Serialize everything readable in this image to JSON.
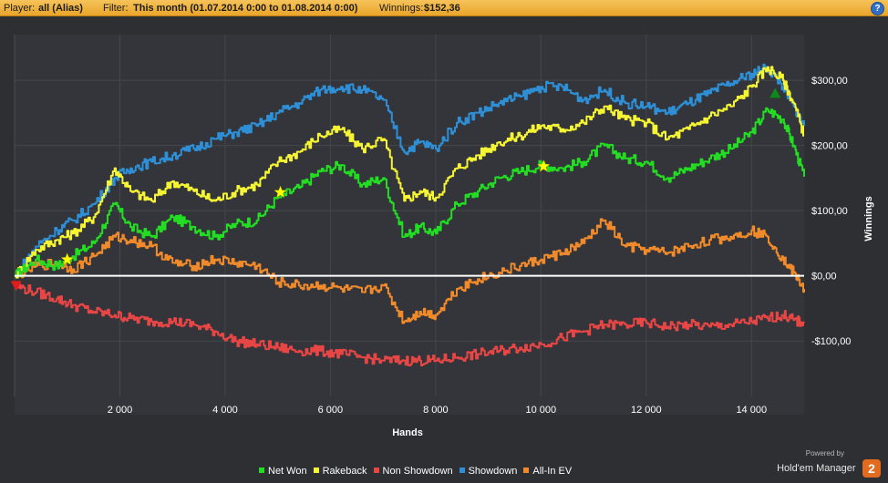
{
  "header": {
    "player_label": "Player:",
    "player_value": "all (Alias)",
    "filter_label": "Filter:",
    "filter_value": "This month (01.07.2014 0:00 to 01.08.2014 0:00)",
    "winnings_label": "Winnings:",
    "winnings_value": "$152,36",
    "help_glyph": "?"
  },
  "chart_data": {
    "type": "line",
    "xlabel": "Hands",
    "ylabel": "Winnings",
    "xlim": [
      0,
      15000
    ],
    "ylim": [
      -185,
      370
    ],
    "x_ticks": [
      2000,
      4000,
      6000,
      8000,
      10000,
      12000,
      14000
    ],
    "x_tick_labels": [
      "2 000",
      "4 000",
      "6 000",
      "8 000",
      "10 000",
      "12 000",
      "14 000"
    ],
    "y_ticks": [
      300,
      200,
      100,
      0,
      -100
    ],
    "y_tick_labels": [
      "$300,00",
      "$200,00",
      "$100,00",
      "$0,00",
      "-$100,00"
    ],
    "grid": true,
    "legend_position": "bottom",
    "x": [
      0,
      400,
      800,
      1100,
      1500,
      1900,
      2200,
      2600,
      3000,
      3400,
      3800,
      4200,
      4600,
      5000,
      5400,
      5800,
      6200,
      6600,
      7000,
      7400,
      7700,
      8000,
      8400,
      8800,
      9200,
      9600,
      10000,
      10400,
      10800,
      11200,
      11600,
      12000,
      12400,
      12800,
      13200,
      13600,
      14000,
      14300,
      14600,
      14800,
      15000
    ],
    "series": [
      {
        "name": "Net Won",
        "color": "#22dd22",
        "values": [
          0,
          25,
          15,
          30,
          50,
          110,
          75,
          60,
          90,
          75,
          60,
          80,
          85,
          120,
          135,
          160,
          170,
          140,
          150,
          60,
          75,
          65,
          110,
          130,
          150,
          160,
          170,
          165,
          175,
          200,
          180,
          175,
          150,
          165,
          180,
          195,
          220,
          255,
          240,
          200,
          152
        ]
      },
      {
        "name": "Rakeback",
        "color": "#f5f533",
        "values": [
          0,
          40,
          55,
          65,
          90,
          165,
          130,
          115,
          145,
          130,
          115,
          130,
          140,
          175,
          190,
          215,
          225,
          195,
          210,
          115,
          130,
          120,
          165,
          185,
          205,
          215,
          230,
          225,
          235,
          260,
          240,
          235,
          210,
          225,
          245,
          260,
          290,
          320,
          300,
          265,
          215
        ]
      },
      {
        "name": "Non Showdown",
        "color": "#e84545",
        "values": [
          -15,
          -25,
          -35,
          -45,
          -55,
          -60,
          -65,
          -70,
          -70,
          -75,
          -85,
          -100,
          -105,
          -110,
          -115,
          -115,
          -120,
          -125,
          -130,
          -130,
          -130,
          -130,
          -125,
          -120,
          -115,
          -110,
          -105,
          -95,
          -85,
          -75,
          -75,
          -72,
          -78,
          -75,
          -78,
          -75,
          -70,
          -65,
          -60,
          -68,
          -72
        ]
      },
      {
        "name": "Showdown",
        "color": "#2e8fd6",
        "values": [
          0,
          45,
          70,
          85,
          110,
          150,
          165,
          175,
          185,
          195,
          210,
          220,
          230,
          250,
          265,
          285,
          290,
          285,
          270,
          190,
          205,
          195,
          235,
          250,
          265,
          275,
          290,
          290,
          270,
          285,
          265,
          260,
          250,
          265,
          280,
          295,
          310,
          320,
          290,
          260,
          230
        ]
      },
      {
        "name": "All-In EV",
        "color": "#f08a2a",
        "values": [
          0,
          15,
          20,
          10,
          30,
          60,
          55,
          45,
          20,
          15,
          25,
          20,
          15,
          -10,
          -15,
          -15,
          -20,
          -25,
          -15,
          -70,
          -55,
          -60,
          -20,
          -5,
          5,
          15,
          25,
          35,
          50,
          85,
          45,
          40,
          35,
          45,
          55,
          60,
          70,
          60,
          25,
          5,
          -20
        ]
      }
    ],
    "markers": [
      {
        "type": "star",
        "x": 1000,
        "y": 25,
        "color": "#ffff00"
      },
      {
        "type": "star",
        "x": 5050,
        "y": 128,
        "color": "#ffff00"
      },
      {
        "type": "star",
        "x": 10050,
        "y": 168,
        "color": "#ffff00"
      },
      {
        "type": "triangle-up",
        "x": 14450,
        "y": 280,
        "color": "#0d8a1a"
      },
      {
        "type": "triangle-down",
        "x": 30,
        "y": -15,
        "color": "#e11c1c"
      }
    ]
  },
  "legend": [
    {
      "label": "Net Won",
      "color": "#22dd22"
    },
    {
      "label": "Rakeback",
      "color": "#f5f533"
    },
    {
      "label": "Non Showdown",
      "color": "#e84545"
    },
    {
      "label": "Showdown",
      "color": "#2e8fd6"
    },
    {
      "label": "All-In EV",
      "color": "#f08a2a"
    }
  ],
  "branding": {
    "powered_by": "Powered by",
    "name": "Hold'em Manager",
    "logo_text": "2"
  }
}
